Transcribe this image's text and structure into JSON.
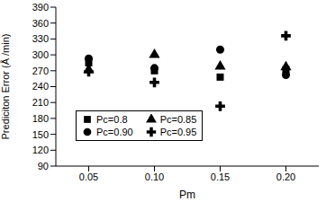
{
  "chart_data": {
    "type": "scatter",
    "x_label": "Pm",
    "y_label": "Prediciton Error (Å /min)",
    "x": [
      0.05,
      0.1,
      0.15,
      0.2
    ],
    "xlim": [
      0.025,
      0.225
    ],
    "xticks": [
      0.05,
      {
        "value": 0.1,
        "label": "0.10"
      },
      0.15,
      {
        "value": 0.2,
        "label": "0.20"
      }
    ],
    "ylim": [
      90,
      390
    ],
    "yticks": [
      90,
      120,
      150,
      180,
      210,
      240,
      270,
      300,
      330,
      360,
      390
    ],
    "legend": "lower left",
    "series": [
      {
        "name": "Pc=0.8",
        "color": "#000000",
        "marker": "square",
        "values": [
          285,
          270,
          258,
          272
        ]
      },
      {
        "name": "Pc=0.85",
        "color": "#000000",
        "marker": "triangle",
        "values": [
          272,
          300,
          278,
          277
        ]
      },
      {
        "name": "Pc=0.90",
        "color": "#000000",
        "marker": "circle",
        "values": [
          293,
          275,
          310,
          262
        ]
      },
      {
        "name": "Pc=0.95",
        "color": "#000000",
        "marker": "cross",
        "values": [
          268,
          248,
          203,
          336
        ]
      }
    ]
  }
}
